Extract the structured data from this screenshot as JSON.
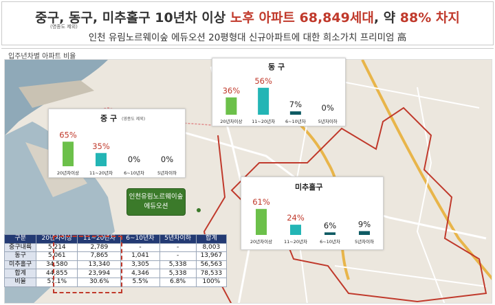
{
  "header": {
    "prefix": "중구, 동구, 미추홀구 10년차 이상 ",
    "highlight": "노후 아파트 68,849세대",
    "mid": ", 약 ",
    "highlight2": "88% 차지",
    "note": "(영종도 제외)",
    "subtitle": "인천 유림노르웨이숲 에듀오션 20평형대 신규아파트에 대한 희소가치 프리미엄 高"
  },
  "section": {
    "label": "입주년차별 아파트 비율"
  },
  "colors": {
    "green": "#6cc04a",
    "teal": "#23b5b5",
    "darkteal": "#0e5a63",
    "red": "#c0392b",
    "navy": "#233a73"
  },
  "callout": {
    "line1": "인천유림노르웨이숲",
    "line2": "에듀오션"
  },
  "chart_data": [
    {
      "type": "bar",
      "title": "동 구",
      "categories": [
        "20년차이상",
        "11~20년차",
        "6~10년차",
        "5년차이하"
      ],
      "values": [
        36,
        56,
        7,
        0
      ],
      "labels": [
        "36%",
        "56%",
        "7%",
        "0%"
      ]
    },
    {
      "type": "bar",
      "title": "중 구",
      "note": "(영종도 제외)",
      "categories": [
        "20년차이상",
        "11~20년차",
        "6~10년차",
        "5년차이하"
      ],
      "values": [
        65,
        35,
        0,
        0
      ],
      "labels": [
        "65%",
        "35%",
        "0%",
        "0%"
      ]
    },
    {
      "type": "bar",
      "title": "미추홀구",
      "categories": [
        "20년차이상",
        "11~20년차",
        "6~10년차",
        "5년차이하"
      ],
      "values": [
        61,
        24,
        6,
        9
      ],
      "labels": [
        "61%",
        "24%",
        "6%",
        "9%"
      ]
    }
  ],
  "table": {
    "headers": [
      "구분",
      "20년차이상",
      "11~20년차",
      "6~10년차",
      "5년차이하",
      "합계"
    ],
    "rows": [
      [
        "중구내륙",
        "5,214",
        "2,789",
        "-",
        "-",
        "8,003"
      ],
      [
        "동구",
        "5,061",
        "7,865",
        "1,041",
        "-",
        "13,967"
      ],
      [
        "미추홀구",
        "34,580",
        "13,340",
        "3,305",
        "5,338",
        "56,563"
      ],
      [
        "합계",
        "44,855",
        "23,994",
        "4,346",
        "5,338",
        "78,533"
      ],
      [
        "비율",
        "57.1%",
        "30.6%",
        "5.5%",
        "6.8%",
        "100%"
      ]
    ]
  }
}
